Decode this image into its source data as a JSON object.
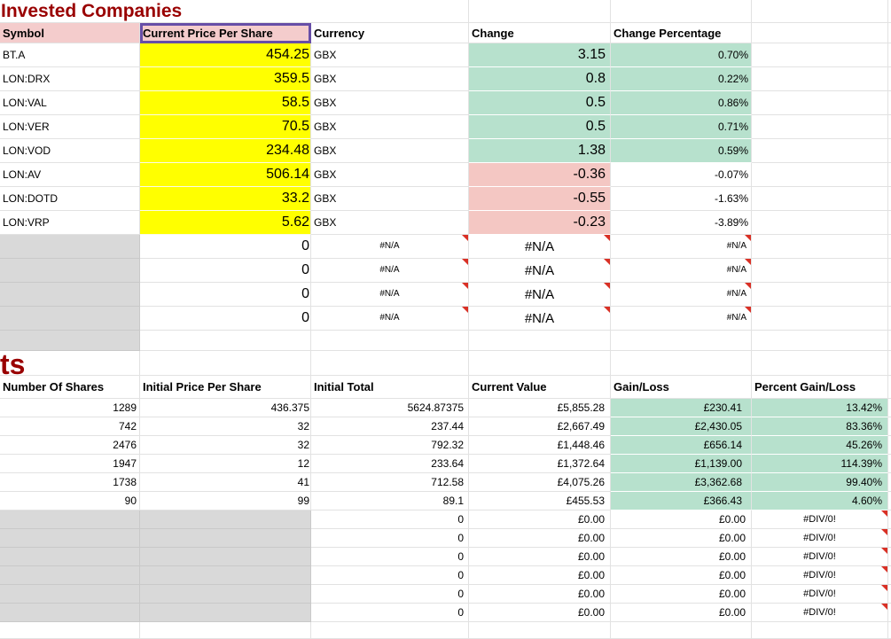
{
  "colors": {
    "title_red": "#990000",
    "header_pink": "#f4cccc",
    "highlight_yellow": "#ffff00",
    "positive_green": "#b7e1cd",
    "negative_pink": "#f4c7c3",
    "empty_gray": "#d9d9d9",
    "selection_purple": "#674ea7",
    "error_red": "#d93025",
    "gridline": "#e2e2e2"
  },
  "section1": {
    "title": "Invested Companies",
    "headers": {
      "symbol": "Symbol",
      "price": "Current Price Per Share",
      "currency": "Currency",
      "change": "Change",
      "change_pct": "Change Percentage"
    },
    "rows": [
      {
        "symbol": "BT.A",
        "price": "454.25",
        "currency": "GBX",
        "change": "3.15",
        "change_pct": "0.70%",
        "trend": "up"
      },
      {
        "symbol": "LON:DRX",
        "price": "359.5",
        "currency": "GBX",
        "change": "0.8",
        "change_pct": "0.22%",
        "trend": "up"
      },
      {
        "symbol": "LON:VAL",
        "price": "58.5",
        "currency": "GBX",
        "change": "0.5",
        "change_pct": "0.86%",
        "trend": "up"
      },
      {
        "symbol": "LON:VER",
        "price": "70.5",
        "currency": "GBX",
        "change": "0.5",
        "change_pct": "0.71%",
        "trend": "up"
      },
      {
        "symbol": "LON:VOD",
        "price": "234.48",
        "currency": "GBX",
        "change": "1.38",
        "change_pct": "0.59%",
        "trend": "up"
      },
      {
        "symbol": "LON:AV",
        "price": "506.14",
        "currency": "GBX",
        "change": "-0.36",
        "change_pct": "-0.07%",
        "trend": "down"
      },
      {
        "symbol": "LON:DOTD",
        "price": "33.2",
        "currency": "GBX",
        "change": "-0.55",
        "change_pct": "-1.63%",
        "trend": "down"
      },
      {
        "symbol": "LON:VRP",
        "price": "5.62",
        "currency": "GBX",
        "change": "-0.23",
        "change_pct": "-3.89%",
        "trend": "down"
      }
    ],
    "na_rows": [
      {
        "price": "0",
        "currency": "#N/A",
        "change": "#N/A",
        "change_pct": "#N/A"
      },
      {
        "price": "0",
        "currency": "#N/A",
        "change": "#N/A",
        "change_pct": "#N/A"
      },
      {
        "price": "0",
        "currency": "#N/A",
        "change": "#N/A",
        "change_pct": "#N/A"
      },
      {
        "price": "0",
        "currency": "#N/A",
        "change": "#N/A",
        "change_pct": "#N/A"
      }
    ]
  },
  "section2": {
    "title": "ts",
    "headers": {
      "shares": "Number Of Shares",
      "initial_price": "Initial Price Per Share",
      "initial_total": "Initial Total",
      "current_value": "Current Value",
      "gain": "Gain/Loss",
      "gain_pct": "Percent Gain/Loss"
    },
    "rows": [
      {
        "shares": "1289",
        "initial_price": "436.375",
        "initial_total": "5624.87375",
        "current_value": "£5,855.28",
        "gain": "£230.41",
        "gain_pct": "13.42%"
      },
      {
        "shares": "742",
        "initial_price": "32",
        "initial_total": "237.44",
        "current_value": "£2,667.49",
        "gain": "£2,430.05",
        "gain_pct": "83.36%"
      },
      {
        "shares": "2476",
        "initial_price": "32",
        "initial_total": "792.32",
        "current_value": "£1,448.46",
        "gain": "£656.14",
        "gain_pct": "45.26%"
      },
      {
        "shares": "1947",
        "initial_price": "12",
        "initial_total": "233.64",
        "current_value": "£1,372.64",
        "gain": "£1,139.00",
        "gain_pct": "114.39%"
      },
      {
        "shares": "1738",
        "initial_price": "41",
        "initial_total": "712.58",
        "current_value": "£4,075.26",
        "gain": "£3,362.68",
        "gain_pct": "99.40%"
      },
      {
        "shares": "90",
        "initial_price": "99",
        "initial_total": "89.1",
        "current_value": "£455.53",
        "gain": "£366.43",
        "gain_pct": "4.60%"
      }
    ],
    "zero_rows": [
      {
        "initial_total": "0",
        "current_value": "£0.00",
        "gain": "£0.00",
        "gain_pct": "#DIV/0!"
      },
      {
        "initial_total": "0",
        "current_value": "£0.00",
        "gain": "£0.00",
        "gain_pct": "#DIV/0!"
      },
      {
        "initial_total": "0",
        "current_value": "£0.00",
        "gain": "£0.00",
        "gain_pct": "#DIV/0!"
      },
      {
        "initial_total": "0",
        "current_value": "£0.00",
        "gain": "£0.00",
        "gain_pct": "#DIV/0!"
      },
      {
        "initial_total": "0",
        "current_value": "£0.00",
        "gain": "£0.00",
        "gain_pct": "#DIV/0!"
      },
      {
        "initial_total": "0",
        "current_value": "£0.00",
        "gain": "£0.00",
        "gain_pct": "#DIV/0!"
      }
    ]
  }
}
